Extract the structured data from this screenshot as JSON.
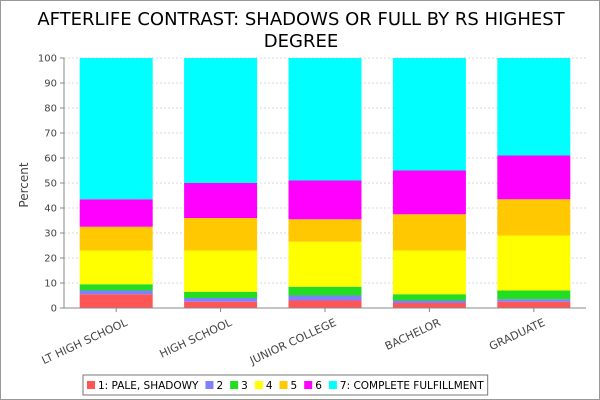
{
  "chart_data": {
    "type": "bar",
    "stacked": true,
    "title_lines": [
      "AFTERLIFE CONTRAST: SHADOWS OR FULL BY RS HIGHEST",
      "DEGREE"
    ],
    "xlabel": "",
    "ylabel": "Percent",
    "ylim": [
      0,
      100
    ],
    "yticks": [
      0,
      10,
      20,
      30,
      40,
      50,
      60,
      70,
      80,
      90,
      100
    ],
    "grid": true,
    "legend_position": "bottom",
    "categories": [
      "LT HIGH SCHOOL",
      "HIGH SCHOOL",
      "JUNIOR COLLEGE",
      "BACHELOR",
      "GRADUATE"
    ],
    "series": [
      {
        "name": "1:  PALE, SHADOWY",
        "color": "#ff5555",
        "values": [
          5.5,
          2.5,
          3.0,
          2.0,
          2.5
        ]
      },
      {
        "name": "2",
        "color": "#8080ff",
        "values": [
          1.5,
          1.5,
          2.0,
          1.0,
          1.0
        ]
      },
      {
        "name": "3",
        "color": "#22dd22",
        "values": [
          2.5,
          2.5,
          3.5,
          2.5,
          3.5
        ]
      },
      {
        "name": "4",
        "color": "#ffff00",
        "values": [
          13.5,
          16.5,
          18.0,
          17.5,
          22.0
        ]
      },
      {
        "name": "5",
        "color": "#ffc800",
        "values": [
          9.5,
          13.0,
          9.0,
          14.5,
          14.5
        ]
      },
      {
        "name": "6",
        "color": "#ff00ff",
        "values": [
          11.0,
          14.0,
          15.5,
          17.5,
          17.5
        ]
      },
      {
        "name": "7:  COMPLETE FULFILLMENT",
        "color": "#00ffff",
        "values": [
          56.5,
          50.0,
          49.0,
          45.0,
          39.0
        ]
      }
    ]
  }
}
